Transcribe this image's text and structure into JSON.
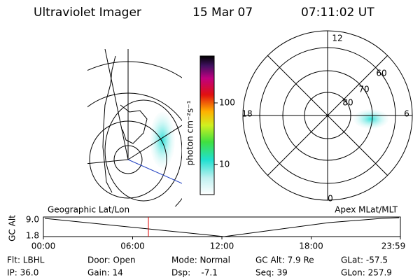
{
  "header": {
    "instrument": "Ultraviolet Imager",
    "date": "15 Mar 07",
    "time": "07:11:02 UT"
  },
  "colorbar": {
    "label": "photon cm⁻²s⁻¹",
    "ticks": [
      "100",
      "10"
    ]
  },
  "polar": {
    "mlt_labels": [
      "12",
      "18",
      "6",
      "0"
    ],
    "lat_labels": [
      "60",
      "70",
      "80"
    ]
  },
  "altitude": {
    "ylabel": "GC Alt",
    "yticks": [
      "9.0",
      "1.8"
    ],
    "xticks": [
      "00:00",
      "06:00",
      "12:00",
      "18:00",
      "23:59"
    ],
    "left_title": "Geographic Lat/Lon",
    "right_title": "Apex MLat/MLT"
  },
  "footer": {
    "rows": [
      [
        "Flt: LBHL",
        "Door: Open",
        "Mode: Normal",
        "GC Alt: 7.9 Re",
        "GLat: -57.5"
      ],
      [
        "IP: 36.0",
        "Gain: 14",
        "Dsp:    -7.1",
        "Seq: 39",
        "GLon: 257.9"
      ]
    ]
  }
}
